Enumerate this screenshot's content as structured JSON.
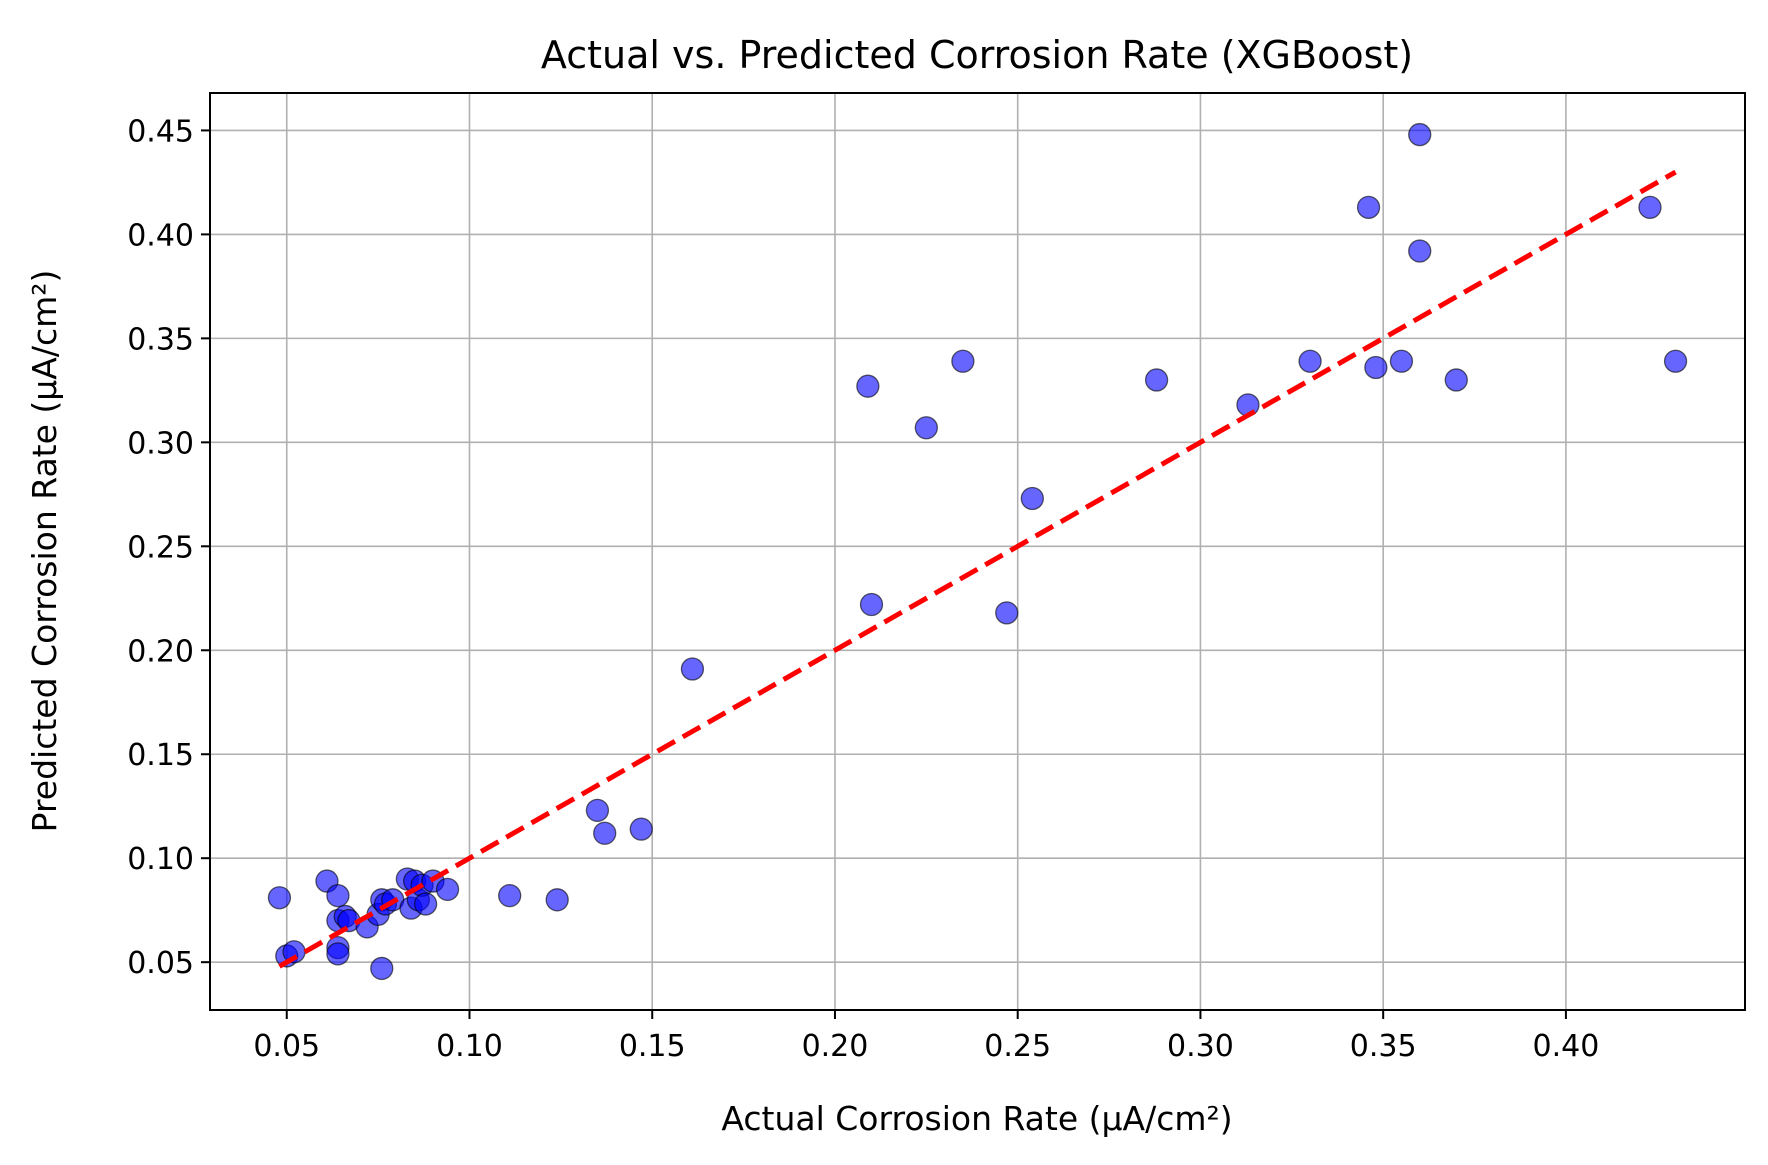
{
  "chart_data": {
    "type": "scatter",
    "title": "Actual vs. Predicted Corrosion Rate (XGBoost)",
    "xlabel": "Actual Corrosion Rate (μA/cm²)",
    "ylabel": "Predicted Corrosion Rate (μA/cm²)",
    "xlim": [
      0.029,
      0.449
    ],
    "ylim": [
      0.027,
      0.468
    ],
    "xticks": [
      0.05,
      0.1,
      0.15,
      0.2,
      0.25,
      0.3,
      0.35,
      0.4
    ],
    "xtick_labels": [
      "0.05",
      "0.10",
      "0.15",
      "0.20",
      "0.25",
      "0.30",
      "0.35",
      "0.40"
    ],
    "yticks": [
      0.05,
      0.1,
      0.15,
      0.2,
      0.25,
      0.3,
      0.35,
      0.4,
      0.45
    ],
    "ytick_labels": [
      "0.05",
      "0.10",
      "0.15",
      "0.20",
      "0.25",
      "0.30",
      "0.35",
      "0.40",
      "0.45"
    ],
    "grid": true,
    "point_color": "#0000ff",
    "line_color": "#ff0000",
    "reference_line": {
      "style": "dashed",
      "x": [
        0.048,
        0.43
      ],
      "y": [
        0.048,
        0.43
      ]
    },
    "points": [
      {
        "x": 0.048,
        "y": 0.081
      },
      {
        "x": 0.05,
        "y": 0.053
      },
      {
        "x": 0.052,
        "y": 0.055
      },
      {
        "x": 0.061,
        "y": 0.089
      },
      {
        "x": 0.064,
        "y": 0.082
      },
      {
        "x": 0.064,
        "y": 0.07
      },
      {
        "x": 0.064,
        "y": 0.057
      },
      {
        "x": 0.064,
        "y": 0.054
      },
      {
        "x": 0.066,
        "y": 0.072
      },
      {
        "x": 0.067,
        "y": 0.07
      },
      {
        "x": 0.072,
        "y": 0.067
      },
      {
        "x": 0.075,
        "y": 0.073
      },
      {
        "x": 0.076,
        "y": 0.08
      },
      {
        "x": 0.076,
        "y": 0.047
      },
      {
        "x": 0.077,
        "y": 0.078
      },
      {
        "x": 0.079,
        "y": 0.08
      },
      {
        "x": 0.083,
        "y": 0.09
      },
      {
        "x": 0.084,
        "y": 0.076
      },
      {
        "x": 0.085,
        "y": 0.089
      },
      {
        "x": 0.086,
        "y": 0.08
      },
      {
        "x": 0.087,
        "y": 0.087
      },
      {
        "x": 0.088,
        "y": 0.078
      },
      {
        "x": 0.09,
        "y": 0.089
      },
      {
        "x": 0.094,
        "y": 0.085
      },
      {
        "x": 0.111,
        "y": 0.082
      },
      {
        "x": 0.124,
        "y": 0.08
      },
      {
        "x": 0.135,
        "y": 0.123
      },
      {
        "x": 0.137,
        "y": 0.112
      },
      {
        "x": 0.147,
        "y": 0.114
      },
      {
        "x": 0.161,
        "y": 0.191
      },
      {
        "x": 0.209,
        "y": 0.327
      },
      {
        "x": 0.21,
        "y": 0.222
      },
      {
        "x": 0.225,
        "y": 0.307
      },
      {
        "x": 0.235,
        "y": 0.339
      },
      {
        "x": 0.247,
        "y": 0.218
      },
      {
        "x": 0.254,
        "y": 0.273
      },
      {
        "x": 0.288,
        "y": 0.33
      },
      {
        "x": 0.313,
        "y": 0.318
      },
      {
        "x": 0.33,
        "y": 0.339
      },
      {
        "x": 0.346,
        "y": 0.413
      },
      {
        "x": 0.348,
        "y": 0.336
      },
      {
        "x": 0.355,
        "y": 0.339
      },
      {
        "x": 0.36,
        "y": 0.448
      },
      {
        "x": 0.36,
        "y": 0.392
      },
      {
        "x": 0.37,
        "y": 0.33
      },
      {
        "x": 0.423,
        "y": 0.413
      },
      {
        "x": 0.43,
        "y": 0.339
      }
    ]
  }
}
